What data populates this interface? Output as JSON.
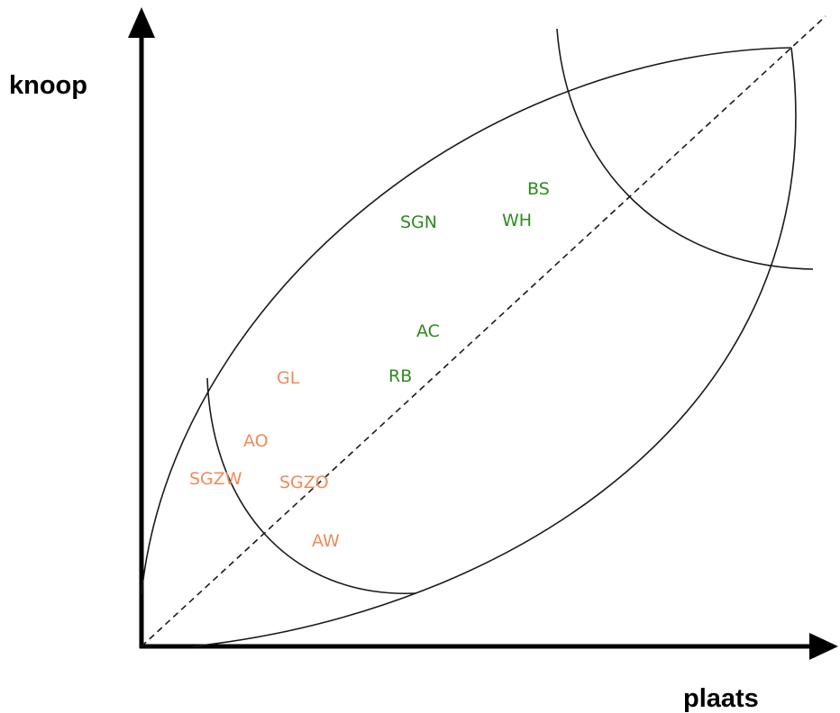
{
  "axes": {
    "y_label": "knoop",
    "x_label": "plaats"
  },
  "colors": {
    "green": "#2e8b1e",
    "orange": "#f08a5a",
    "axis": "#000000",
    "line": "#1a1a1a"
  },
  "labels": {
    "bs": "BS",
    "sgn": "SGN",
    "wh": "WH",
    "ac": "AC",
    "rb": "RB",
    "gl": "GL",
    "ao": "AO",
    "sgzw": "SGZW",
    "sgzo": "SGZO",
    "aw": "AW"
  }
}
